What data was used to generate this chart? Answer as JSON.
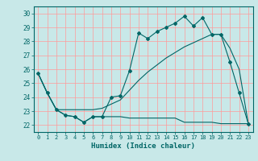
{
  "title": "",
  "xlabel": "Humidex (Indice chaleur)",
  "background_color": "#c8e8e8",
  "grid_color": "#ff9999",
  "line_color": "#006666",
  "xlim": [
    -0.5,
    23.5
  ],
  "ylim": [
    21.5,
    30.5
  ],
  "xticks": [
    0,
    1,
    2,
    3,
    4,
    5,
    6,
    7,
    8,
    9,
    10,
    11,
    12,
    13,
    14,
    15,
    16,
    17,
    18,
    19,
    20,
    21,
    22,
    23
  ],
  "yticks": [
    22,
    23,
    24,
    25,
    26,
    27,
    28,
    29,
    30
  ],
  "curve1_x": [
    0,
    1,
    2,
    3,
    4,
    5,
    6,
    7,
    8,
    9,
    10,
    11,
    12,
    13,
    14,
    15,
    16,
    17,
    18,
    19,
    20,
    21,
    22,
    23
  ],
  "curve1_y": [
    25.7,
    24.3,
    23.1,
    22.7,
    22.6,
    22.2,
    22.6,
    22.6,
    24.0,
    24.1,
    25.9,
    28.6,
    28.2,
    28.7,
    29.0,
    29.3,
    29.8,
    29.1,
    29.7,
    28.5,
    28.5,
    26.5,
    24.3,
    22.1
  ],
  "curve2_x": [
    0,
    1,
    2,
    3,
    4,
    5,
    6,
    7,
    8,
    9,
    10,
    11,
    12,
    13,
    14,
    15,
    16,
    17,
    18,
    19,
    20,
    21,
    22,
    23
  ],
  "curve2_y": [
    25.7,
    24.3,
    23.1,
    23.1,
    23.1,
    23.1,
    23.1,
    23.2,
    23.5,
    23.8,
    24.5,
    25.2,
    25.8,
    26.3,
    26.8,
    27.2,
    27.6,
    27.9,
    28.2,
    28.5,
    28.5,
    27.5,
    26.0,
    22.1
  ],
  "curve3_x": [
    0,
    1,
    2,
    3,
    4,
    5,
    6,
    7,
    8,
    9,
    10,
    11,
    12,
    13,
    14,
    15,
    16,
    17,
    18,
    19,
    20,
    21,
    22,
    23
  ],
  "curve3_y": [
    25.7,
    24.3,
    23.1,
    22.7,
    22.6,
    22.2,
    22.6,
    22.6,
    22.6,
    22.6,
    22.5,
    22.5,
    22.5,
    22.5,
    22.5,
    22.5,
    22.2,
    22.2,
    22.2,
    22.2,
    22.1,
    22.1,
    22.1,
    22.1
  ],
  "marker": "D",
  "markersize": 2.0,
  "linewidth": 0.8,
  "xlabel_fontsize": 6.5,
  "tick_fontsize": 5.0
}
